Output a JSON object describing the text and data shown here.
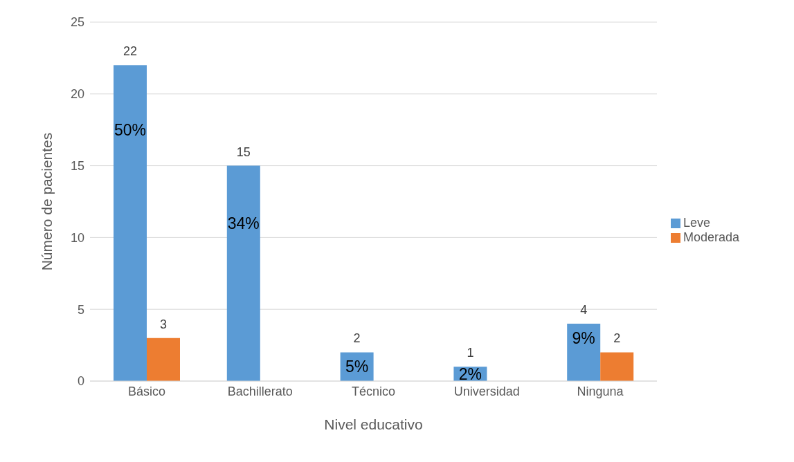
{
  "chart_data": {
    "type": "bar",
    "xlabel": "Nivel educativo",
    "ylabel": "Número de pacientes",
    "categories": [
      "Básico",
      "Bachillerato",
      "Técnico",
      "Universidad",
      "Ninguna"
    ],
    "series": [
      {
        "name": "Leve",
        "color": "#5b9bd5",
        "values": [
          22,
          15,
          2,
          1,
          4
        ]
      },
      {
        "name": "Moderada",
        "color": "#ed7d31",
        "values": [
          3,
          null,
          null,
          null,
          2
        ]
      }
    ],
    "ylim": [
      0,
      25
    ],
    "yticks": [
      0,
      5,
      10,
      15,
      20,
      25
    ],
    "grid": "y",
    "legend": "right",
    "data_labels": true,
    "annotations": [
      {
        "text": "50%",
        "x": "Básico",
        "y": 17.5
      },
      {
        "text": "34%",
        "x": "Bachillerato",
        "y": 11
      },
      {
        "text": "5%",
        "x": "Técnico",
        "y": 1
      },
      {
        "text": "2%",
        "x": "Universidad",
        "y": 0.5
      },
      {
        "text": "9%",
        "x": "Ninguna",
        "y": 3
      }
    ]
  }
}
